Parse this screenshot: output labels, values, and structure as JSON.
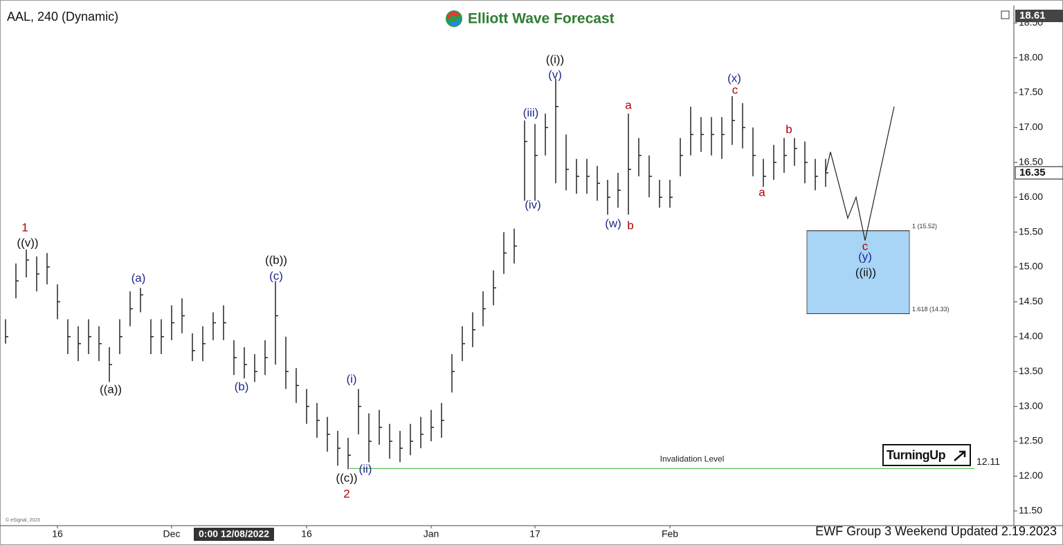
{
  "chart_data": {
    "type": "ohlc",
    "title": "AAL, 240 (Dynamic)",
    "brand": "Elliott Wave Forecast",
    "footer": "EWF Group 3 Weekend Updated 2.19.2023",
    "copyright": "© eSignal, 2023",
    "crosshair_label": "0:00 12/08/2022",
    "badge": "TurningUp",
    "ylim": [
      11.29,
      18.73
    ],
    "yticks": [
      {
        "value": 11.5,
        "label": "11.50"
      },
      {
        "value": 12,
        "label": "12.00"
      },
      {
        "value": 12.5,
        "label": "12.50"
      },
      {
        "value": 13,
        "label": "13.00"
      },
      {
        "value": 13.5,
        "label": "13.50"
      },
      {
        "value": 14,
        "label": "14.00"
      },
      {
        "value": 14.5,
        "label": "14.50"
      },
      {
        "value": 15,
        "label": "15.00"
      },
      {
        "value": 15.5,
        "label": "15.50"
      },
      {
        "value": 16,
        "label": "16.00"
      },
      {
        "value": 16.5,
        "label": "16.50"
      },
      {
        "value": 17,
        "label": "17.00"
      },
      {
        "value": 17.5,
        "label": "17.50"
      },
      {
        "value": 18,
        "label": "18.00"
      },
      {
        "value": 18.5,
        "label": "18.50"
      }
    ],
    "xticks": [
      {
        "value": 5,
        "label": "16"
      },
      {
        "value": 16,
        "label": "Dec"
      },
      {
        "value": 29,
        "label": "16"
      },
      {
        "value": 41,
        "label": "Jan"
      },
      {
        "value": 51,
        "label": "17"
      },
      {
        "value": 64,
        "label": "Feb"
      }
    ],
    "crosshair_x": 22,
    "price_high_tag": 18.61,
    "color": "#222222",
    "high": [
      14.25,
      15.05,
      15.25,
      15.15,
      15.2,
      14.75,
      14.25,
      14.15,
      14.25,
      14.15,
      13.85,
      14.25,
      14.65,
      14.7,
      14.25,
      14.25,
      14.45,
      14.55,
      14.05,
      14.15,
      14.35,
      14.45,
      13.95,
      13.85,
      13.75,
      13.95,
      14.8,
      14.0,
      13.55,
      13.25,
      13.05,
      12.85,
      12.65,
      12.55,
      13.25,
      12.9,
      12.95,
      12.75,
      12.65,
      12.75,
      12.85,
      12.95,
      13.05,
      13.75,
      14.15,
      14.35,
      14.65,
      14.95,
      15.5,
      15.55,
      17.1,
      17.05,
      17.2,
      17.7,
      16.9,
      16.55,
      16.55,
      16.45,
      16.25,
      16.35,
      17.2,
      16.85,
      16.6,
      16.25,
      16.25,
      16.85,
      17.3,
      17.15,
      17.15,
      17.15,
      17.45,
      17.35,
      17.0,
      16.55,
      16.75,
      16.85,
      16.85,
      16.8,
      16.55,
      16.55
    ],
    "low": [
      13.9,
      14.55,
      14.85,
      14.65,
      14.75,
      14.25,
      13.75,
      13.65,
      13.75,
      13.65,
      13.35,
      13.75,
      14.15,
      14.35,
      13.75,
      13.75,
      13.95,
      14.05,
      13.65,
      13.65,
      13.95,
      13.95,
      13.45,
      13.4,
      13.35,
      13.45,
      13.6,
      13.25,
      13.05,
      12.75,
      12.55,
      12.35,
      12.15,
      12.1,
      12.6,
      12.2,
      12.45,
      12.25,
      12.2,
      12.3,
      12.4,
      12.5,
      12.55,
      13.2,
      13.65,
      13.85,
      14.15,
      14.45,
      14.9,
      15.05,
      15.95,
      15.95,
      16.6,
      16.2,
      16.1,
      16.05,
      16.05,
      15.95,
      15.75,
      15.85,
      15.75,
      16.3,
      16.0,
      15.85,
      15.85,
      16.3,
      16.6,
      16.65,
      16.6,
      16.55,
      16.75,
      16.7,
      16.3,
      16.15,
      16.25,
      16.35,
      16.45,
      16.2,
      16.1,
      16.15
    ],
    "close": [
      14.0,
      14.8,
      15.1,
      14.9,
      15.0,
      14.5,
      14.0,
      13.9,
      14.0,
      13.9,
      13.6,
      14.0,
      14.4,
      14.6,
      14.0,
      14.0,
      14.2,
      14.3,
      13.8,
      13.9,
      14.2,
      14.2,
      13.7,
      13.6,
      13.5,
      13.7,
      14.3,
      13.5,
      13.3,
      13.0,
      12.8,
      12.6,
      12.4,
      12.3,
      13.0,
      12.5,
      12.7,
      12.5,
      12.4,
      12.5,
      12.6,
      12.7,
      12.8,
      13.5,
      13.9,
      14.1,
      14.4,
      14.7,
      15.2,
      15.3,
      16.8,
      16.6,
      17.0,
      17.3,
      16.4,
      16.3,
      16.3,
      16.2,
      16.0,
      16.1,
      16.4,
      16.6,
      16.3,
      16.0,
      16.0,
      16.6,
      16.9,
      16.9,
      16.9,
      16.9,
      17.1,
      17.0,
      16.6,
      16.3,
      16.5,
      16.6,
      16.7,
      16.5,
      16.3,
      16.35
    ],
    "projection": [
      16.65,
      15.7,
      16.0,
      15.38,
      17.3
    ],
    "target_zone": {
      "top": 15.52,
      "bottom": 14.33,
      "top_label": "1 (15.52)",
      "bottom_label": "1.618 (14.33)",
      "color": "#a8d4f5"
    },
    "invalidation": {
      "value": 12.11,
      "label": "Invalidation Level",
      "color": "#5cc45c"
    },
    "annotations": [
      {
        "text": "1",
        "color": "#b00000"
      },
      {
        "text": "((v))",
        "color": "#111111"
      },
      {
        "text": "((a))",
        "color": "#111111"
      },
      {
        "text": "(a)",
        "color": "#1f2a8a"
      },
      {
        "text": "((b))",
        "color": "#111111"
      },
      {
        "text": "(c)",
        "color": "#1f2a8a"
      },
      {
        "text": "(b)",
        "color": "#1f2a8a"
      },
      {
        "text": "(i)",
        "color": "#1f2a8a"
      },
      {
        "text": "(ii)",
        "color": "#1f2a8a"
      },
      {
        "text": "((c))",
        "color": "#111111"
      },
      {
        "text": "2",
        "color": "#b00000"
      },
      {
        "text": "(iii)",
        "color": "#1f2a8a"
      },
      {
        "text": "(iv)",
        "color": "#1f2a8a"
      },
      {
        "text": "((i))",
        "color": "#111111"
      },
      {
        "text": "(v)",
        "color": "#1f2a8a"
      },
      {
        "text": "(w)",
        "color": "#1f2a8a"
      },
      {
        "text": "b",
        "color": "#b00000"
      },
      {
        "text": "a",
        "color": "#b00000"
      },
      {
        "text": "(x)",
        "color": "#1f2a8a"
      },
      {
        "text": "c",
        "color": "#b00000"
      },
      {
        "text": "a",
        "color": "#b00000"
      },
      {
        "text": "b",
        "color": "#b00000"
      },
      {
        "text": "c",
        "color": "#b00000"
      },
      {
        "text": "(y)",
        "color": "#1f2a8a"
      },
      {
        "text": "((ii))",
        "color": "#111111"
      }
    ]
  }
}
